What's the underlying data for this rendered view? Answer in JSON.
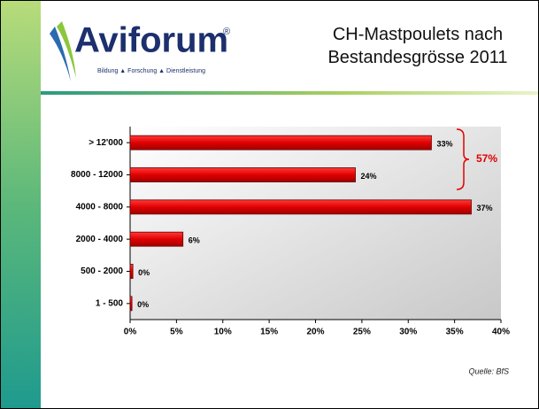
{
  "header": {
    "logo": "Aviforum",
    "logo_mark": "®",
    "tagline": "Bildung ▲ Forschung ▲ Dienstleistung"
  },
  "chart_data": {
    "type": "bar",
    "orientation": "horizontal",
    "title": "CH-Mastpoulets nach Bestandesgrösse 2011",
    "categories": [
      "> 12'000",
      "8000 - 12000",
      "4000 - 8000",
      "2000 - 4000",
      "500 - 2000",
      "1 - 500"
    ],
    "values": [
      32.5,
      24.3,
      36.8,
      5.7,
      0.3,
      0.2
    ],
    "value_labels": [
      "33%",
      "24%",
      "37%",
      "6%",
      "0%",
      "0%"
    ],
    "color": "#e00000",
    "xlim": [
      0,
      40
    ],
    "xticks": [
      {
        "value": 0,
        "label": "0%"
      },
      {
        "value": 5,
        "label": "5%"
      },
      {
        "value": 10,
        "label": "10%"
      },
      {
        "value": 15,
        "label": "15%"
      },
      {
        "value": 20,
        "label": "20%"
      },
      {
        "value": 25,
        "label": "25%"
      },
      {
        "value": 30,
        "label": "30%"
      },
      {
        "value": 35,
        "label": "35%"
      },
      {
        "value": 40,
        "label": "40%"
      }
    ],
    "annotation": "57%",
    "source": "Quelle: BfS"
  }
}
